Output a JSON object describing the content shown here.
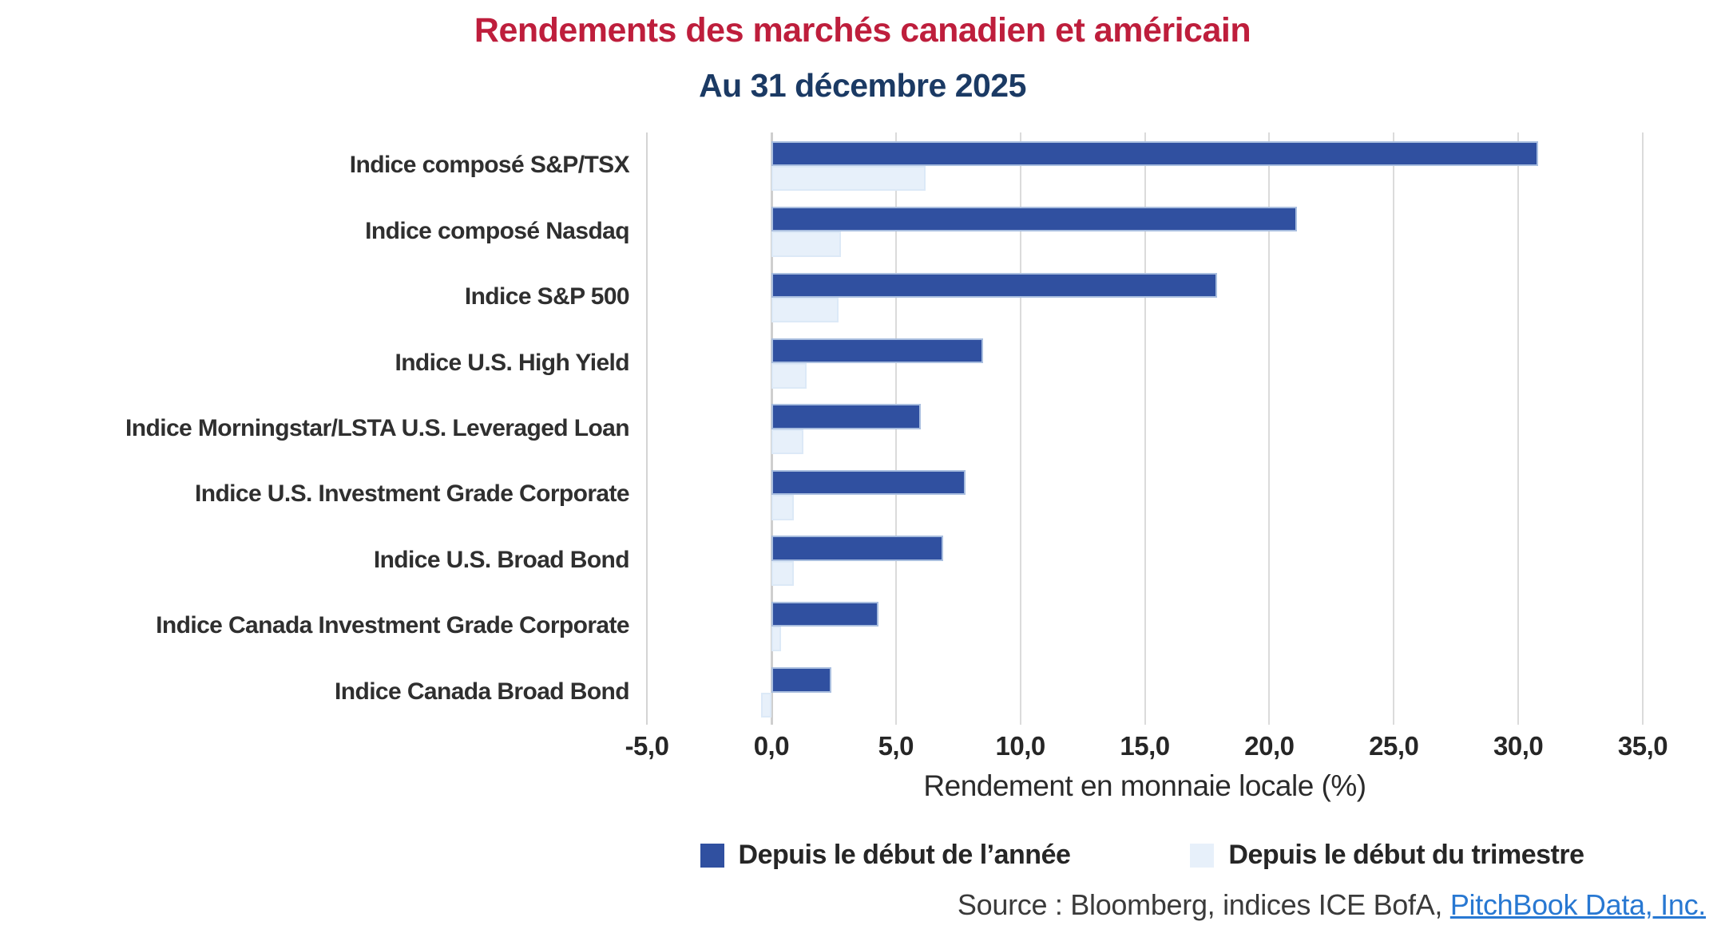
{
  "title": "Rendements des marchés canadien et américain",
  "subtitle": "Au 31 décembre 2025",
  "colors": {
    "title_red": "#BE1E3C",
    "subtitle_navy": "#1B3A64",
    "ytd_bar": "#3050A0",
    "qtd_bar": "#E7F0FA",
    "gridline": "#DBDBDB",
    "link_blue": "#2878D2"
  },
  "chart_data": {
    "type": "bar",
    "orientation": "horizontal",
    "title": "Rendements des marchés canadien et américain",
    "subtitle": "Au 31 décembre 2025",
    "categories": [
      "Indice composé S&P/TSX",
      "Indice composé Nasdaq",
      "Indice S&P 500",
      "Indice U.S. High Yield",
      "Indice Morningstar/LSTA U.S. Leveraged Loan",
      "Indice U.S. Investment Grade Corporate",
      "Indice U.S. Broad Bond",
      "Indice Canada Investment Grade Corporate",
      "Indice Canada Broad Bond"
    ],
    "series": [
      {
        "name": "Depuis le début de l’année",
        "color": "#3050A0",
        "values": [
          30.8,
          21.1,
          17.9,
          8.5,
          6.0,
          7.8,
          6.9,
          4.3,
          2.4
        ]
      },
      {
        "name": "Depuis le début du trimestre",
        "color": "#E7F0FA",
        "values": [
          6.2,
          2.8,
          2.7,
          1.4,
          1.3,
          0.9,
          0.9,
          0.4,
          -0.4
        ]
      }
    ],
    "xlabel": "Rendement en monnaie locale (%)",
    "xlim": [
      -5,
      35
    ],
    "xticks": [
      -5,
      0,
      5,
      10,
      15,
      20,
      25,
      30,
      35
    ],
    "xtick_labels": [
      "-5,0",
      "0,0",
      "5,0",
      "10,0",
      "15,0",
      "20,0",
      "25,0",
      "30,0",
      "35,0"
    ],
    "grid": "vertical",
    "legend_position": "bottom"
  },
  "source": {
    "prefix": "Source : Bloomberg, indices ICE BofA, ",
    "link": "PitchBook Data, Inc."
  }
}
